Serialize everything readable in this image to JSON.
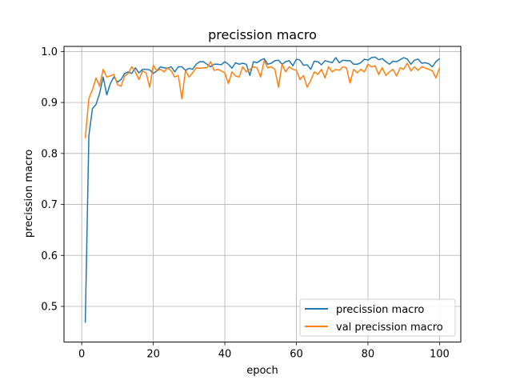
{
  "chart_data": {
    "type": "line",
    "title": "precission macro",
    "xlabel": "epoch",
    "ylabel": "precission macro",
    "xlim": [
      -4.95,
      105.95
    ],
    "ylim": [
      0.43,
      1.01
    ],
    "xticks": [
      0,
      20,
      40,
      60,
      80,
      100
    ],
    "yticks": [
      0.5,
      0.6,
      0.7,
      0.8,
      0.9,
      1.0
    ],
    "ytick_labels": [
      "0.5",
      "0.6",
      "0.7",
      "0.8",
      "0.9",
      "1.0"
    ],
    "grid": true,
    "legend": "lower-right",
    "x": [
      1,
      2,
      3,
      4,
      5,
      6,
      7,
      8,
      9,
      10,
      11,
      12,
      13,
      14,
      15,
      16,
      17,
      18,
      19,
      20,
      21,
      22,
      23,
      24,
      25,
      26,
      27,
      28,
      29,
      30,
      31,
      32,
      33,
      34,
      35,
      36,
      37,
      38,
      39,
      40,
      41,
      42,
      43,
      44,
      45,
      46,
      47,
      48,
      49,
      50,
      51,
      52,
      53,
      54,
      55,
      56,
      57,
      58,
      59,
      60,
      61,
      62,
      63,
      64,
      65,
      66,
      67,
      68,
      69,
      70,
      71,
      72,
      73,
      74,
      75,
      76,
      77,
      78,
      79,
      80,
      81,
      82,
      83,
      84,
      85,
      86,
      87,
      88,
      89,
      90,
      91,
      92,
      93,
      94,
      95,
      96,
      97,
      98,
      99,
      100
    ],
    "series": [
      {
        "name": "precission macro",
        "color": "#1f77b4",
        "values": [
          0.468,
          0.835,
          0.888,
          0.896,
          0.918,
          0.95,
          0.915,
          0.937,
          0.95,
          0.94,
          0.945,
          0.957,
          0.96,
          0.957,
          0.968,
          0.958,
          0.965,
          0.965,
          0.964,
          0.957,
          0.962,
          0.97,
          0.968,
          0.967,
          0.97,
          0.96,
          0.97,
          0.97,
          0.963,
          0.967,
          0.965,
          0.975,
          0.98,
          0.98,
          0.975,
          0.97,
          0.975,
          0.975,
          0.974,
          0.98,
          0.975,
          0.967,
          0.978,
          0.975,
          0.977,
          0.975,
          0.953,
          0.98,
          0.978,
          0.983,
          0.986,
          0.975,
          0.977,
          0.982,
          0.983,
          0.975,
          0.98,
          0.982,
          0.972,
          0.985,
          0.983,
          0.973,
          0.974,
          0.965,
          0.981,
          0.98,
          0.974,
          0.982,
          0.98,
          0.978,
          0.988,
          0.978,
          0.983,
          0.982,
          0.982,
          0.975,
          0.975,
          0.978,
          0.985,
          0.983,
          0.988,
          0.989,
          0.984,
          0.986,
          0.98,
          0.975,
          0.981,
          0.98,
          0.984,
          0.988,
          0.985,
          0.975,
          0.983,
          0.985,
          0.977,
          0.978,
          0.976,
          0.97,
          0.98,
          0.986
        ]
      },
      {
        "name": "val precission macro",
        "color": "#ff7f0e",
        "values": [
          0.83,
          0.908,
          0.925,
          0.948,
          0.932,
          0.965,
          0.95,
          0.952,
          0.955,
          0.935,
          0.932,
          0.952,
          0.957,
          0.97,
          0.96,
          0.945,
          0.962,
          0.958,
          0.93,
          0.973,
          0.962,
          0.965,
          0.96,
          0.968,
          0.962,
          0.95,
          0.953,
          0.907,
          0.963,
          0.95,
          0.958,
          0.968,
          0.967,
          0.968,
          0.968,
          0.98,
          0.963,
          0.965,
          0.962,
          0.958,
          0.937,
          0.96,
          0.952,
          0.95,
          0.97,
          0.96,
          0.965,
          0.97,
          0.968,
          0.95,
          0.982,
          0.968,
          0.97,
          0.965,
          0.93,
          0.975,
          0.96,
          0.97,
          0.965,
          0.963,
          0.945,
          0.953,
          0.93,
          0.943,
          0.96,
          0.955,
          0.965,
          0.948,
          0.97,
          0.96,
          0.965,
          0.963,
          0.97,
          0.968,
          0.938,
          0.965,
          0.958,
          0.965,
          0.96,
          0.975,
          0.97,
          0.972,
          0.955,
          0.968,
          0.953,
          0.96,
          0.965,
          0.952,
          0.968,
          0.965,
          0.977,
          0.962,
          0.97,
          0.963,
          0.97,
          0.968,
          0.965,
          0.962,
          0.948,
          0.968
        ]
      }
    ]
  }
}
